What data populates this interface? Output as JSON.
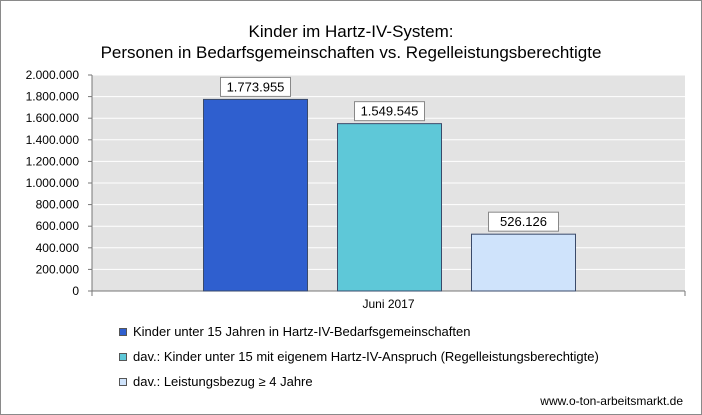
{
  "chart_data": {
    "type": "bar",
    "title_line1": "Kinder im Hartz-IV-System:",
    "title_line2": "Personen in Bedarfsgemeinschaften vs. Regelleistungsberechtigte",
    "categories": [
      "Juni 2017"
    ],
    "ylim": [
      0,
      2000000
    ],
    "ytick_values": [
      0,
      200000,
      400000,
      600000,
      800000,
      1000000,
      1200000,
      1400000,
      1600000,
      1800000,
      2000000
    ],
    "ytick_labels": [
      "0",
      "200.000",
      "400.000",
      "600.000",
      "800.000",
      "1.000.000",
      "1.200.000",
      "1.400.000",
      "1.600.000",
      "1.800.000",
      "2.000.000"
    ],
    "grid": true,
    "legend_position": "bottom",
    "series": [
      {
        "name": "Kinder unter 15 Jahren in Hartz-IV-Bedarfsgemeinschaften",
        "values": [
          1773955
        ],
        "label": "1.773.955",
        "color": "#2f5fcf"
      },
      {
        "name": "dav.: Kinder unter 15 mit eigenem Hartz-IV-Anspruch (Regelleistungsberechtigte)",
        "values": [
          1549545
        ],
        "label": "1.549.545",
        "color": "#5ec8d8"
      },
      {
        "name": "dav.:  Leistungsbezug ≥ 4 Jahre",
        "values": [
          526126
        ],
        "label": "526.126",
        "color": "#cfe3fb"
      }
    ]
  },
  "footer": "www.o-ton-arbeitsmarkt.de"
}
